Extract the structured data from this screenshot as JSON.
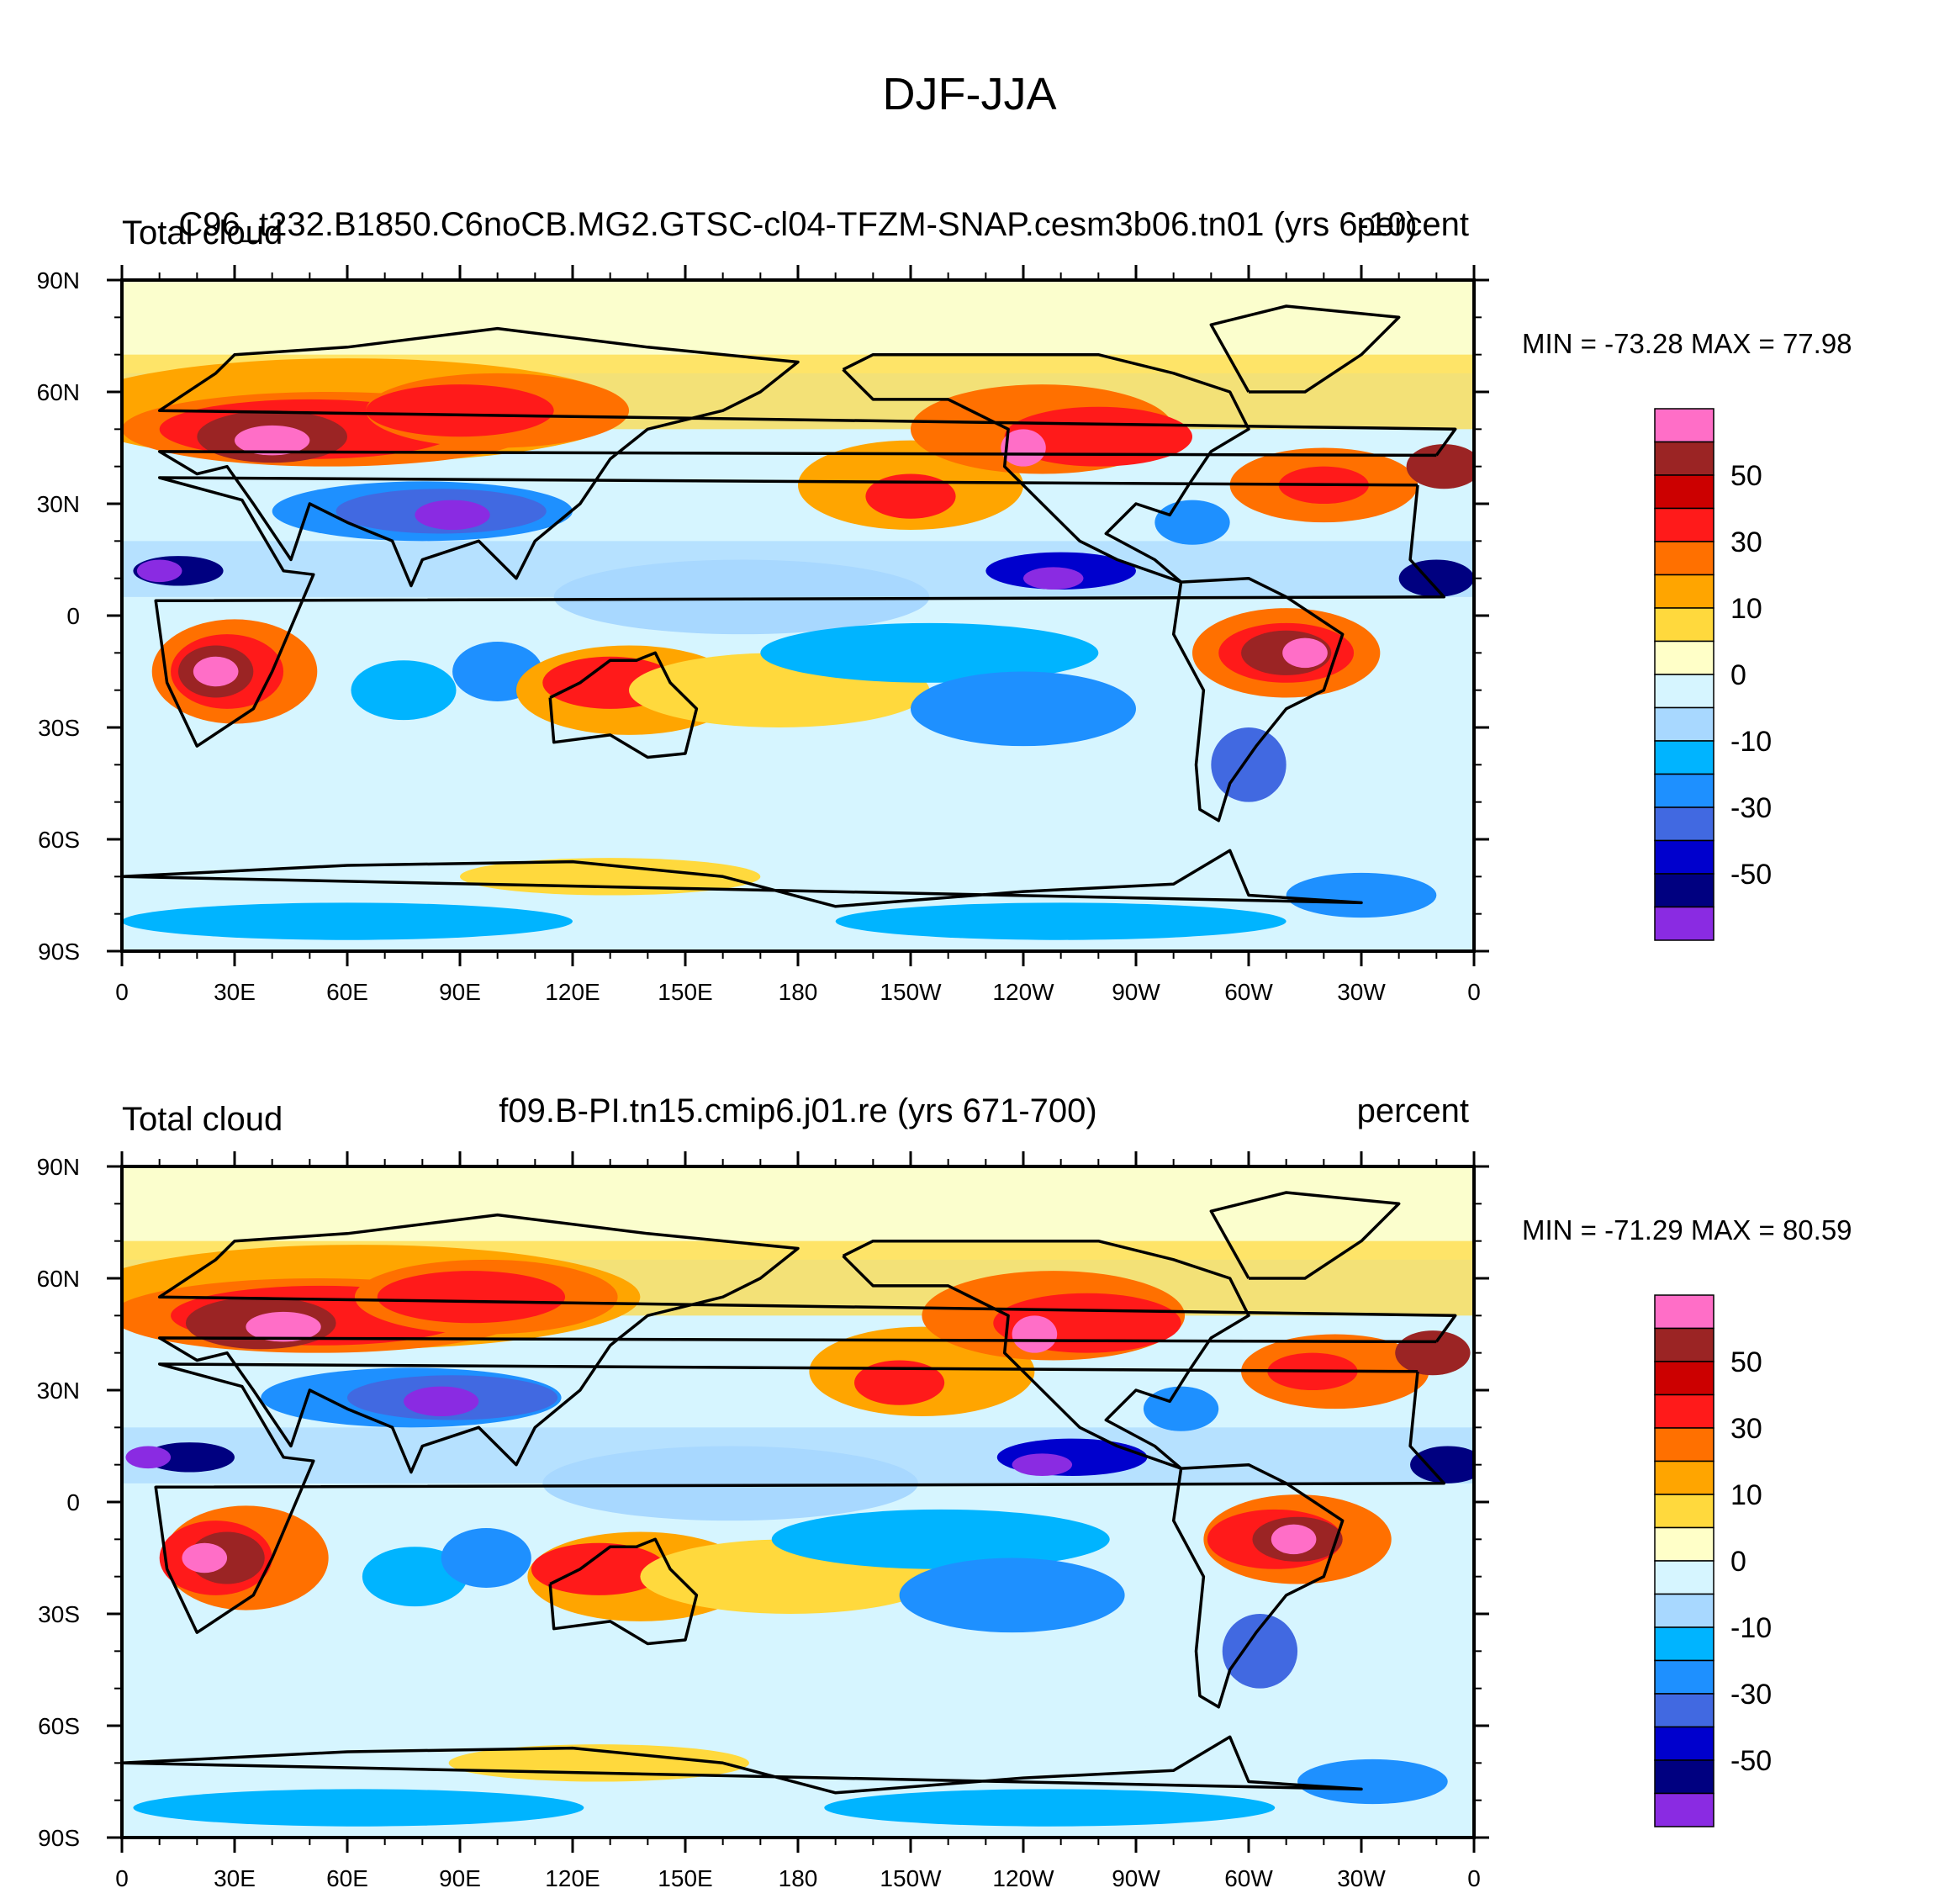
{
  "figure": {
    "main_title": "DJF-JJA"
  },
  "colorbar": {
    "labels": [
      "50",
      "30",
      "10",
      "0",
      "-10",
      "-30",
      "-50"
    ],
    "colors": [
      "#ff6ec7",
      "#9b2424",
      "#cc0000",
      "#ff1a1a",
      "#ff7000",
      "#ffa500",
      "#ffd93d",
      "#ffffc8",
      "#d6f5ff",
      "#a8d8ff",
      "#00b4ff",
      "#1e90ff",
      "#4169e1",
      "#0000cd",
      "#000080",
      "#8a2be2"
    ]
  },
  "chart_data": [
    {
      "type": "heatmap",
      "left_title": "Total cloud",
      "center_title": "C96_t232.B1850.C6noCB.MG2.GTSC-cl04-TFZM-SNAP.cesm3b06.tn01 (yrs 6-10)",
      "right_title": "percent",
      "stats": "MIN = -73.28 MAX =  77.98",
      "min": -73.28,
      "max": 77.98,
      "x_ticks": [
        "0",
        "30E",
        "60E",
        "90E",
        "120E",
        "150E",
        "180",
        "150W",
        "120W",
        "90W",
        "60W",
        "30W",
        "0"
      ],
      "y_ticks": [
        "90N",
        "60N",
        "30N",
        "0",
        "30S",
        "60S",
        "90S"
      ],
      "xlim": [
        0,
        360
      ],
      "ylim": [
        -90,
        90
      ]
    },
    {
      "type": "heatmap",
      "left_title": "Total cloud",
      "center_title": "f09.B-PI.tn15.cmip6.j01.re (yrs 671-700)",
      "right_title": "percent",
      "stats": "MIN = -71.29 MAX =  80.59",
      "min": -71.29,
      "max": 80.59,
      "x_ticks": [
        "0",
        "30E",
        "60E",
        "90E",
        "120E",
        "150E",
        "180",
        "150W",
        "120W",
        "90W",
        "60W",
        "30W",
        "0"
      ],
      "y_ticks": [
        "90N",
        "60N",
        "30N",
        "0",
        "30S",
        "60S",
        "90S"
      ],
      "xlim": [
        0,
        360
      ],
      "ylim": [
        -90,
        90
      ]
    }
  ]
}
